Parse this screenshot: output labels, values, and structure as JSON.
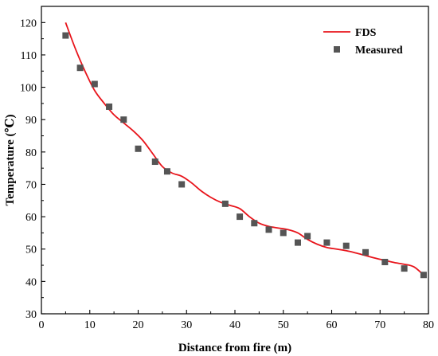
{
  "chart_data": {
    "type": "line",
    "title": "",
    "xlabel": "Distance from fire (m)",
    "ylabel": "Temperature (℃)",
    "xlim": [
      0,
      80
    ],
    "ylim": [
      30,
      125
    ],
    "xticks": [
      0,
      10,
      20,
      30,
      40,
      50,
      60,
      70,
      80
    ],
    "yticks": [
      30,
      40,
      50,
      60,
      70,
      80,
      90,
      100,
      110,
      120
    ],
    "grid": false,
    "legend_position": "top-right",
    "series": [
      {
        "name": "FDS",
        "kind": "line",
        "color": "#e8141b",
        "x": [
          5,
          7,
          9,
          11,
          13,
          15,
          17,
          19,
          21,
          23,
          25,
          27,
          29,
          31,
          33,
          35,
          37,
          39,
          41,
          43,
          45,
          47,
          49,
          51,
          53,
          55,
          57,
          59,
          61,
          63,
          65,
          67,
          69,
          71,
          73,
          75,
          77,
          79
        ],
        "y": [
          120,
          112,
          105,
          99,
          95,
          91.5,
          89,
          86.5,
          83.5,
          79.5,
          75.5,
          73.5,
          72.5,
          70.5,
          68,
          66,
          64.5,
          63.5,
          62.5,
          60,
          58,
          57,
          56.5,
          56,
          55,
          53,
          51.5,
          50.5,
          50,
          49.5,
          48.8,
          48,
          47.2,
          46.5,
          45.8,
          45.3,
          44.5,
          42
        ]
      },
      {
        "name": "Measured",
        "kind": "scatter",
        "color": "#555555",
        "x": [
          5,
          8,
          11,
          14,
          17,
          20,
          23.5,
          26,
          29,
          38,
          41,
          44,
          47,
          50,
          53,
          55,
          59,
          63,
          67,
          71,
          75,
          79
        ],
        "y": [
          116,
          106,
          101,
          94,
          90,
          81,
          77,
          74,
          70,
          64,
          60,
          58,
          56,
          55,
          52,
          54,
          52,
          51,
          49,
          46,
          44,
          42
        ]
      }
    ]
  }
}
